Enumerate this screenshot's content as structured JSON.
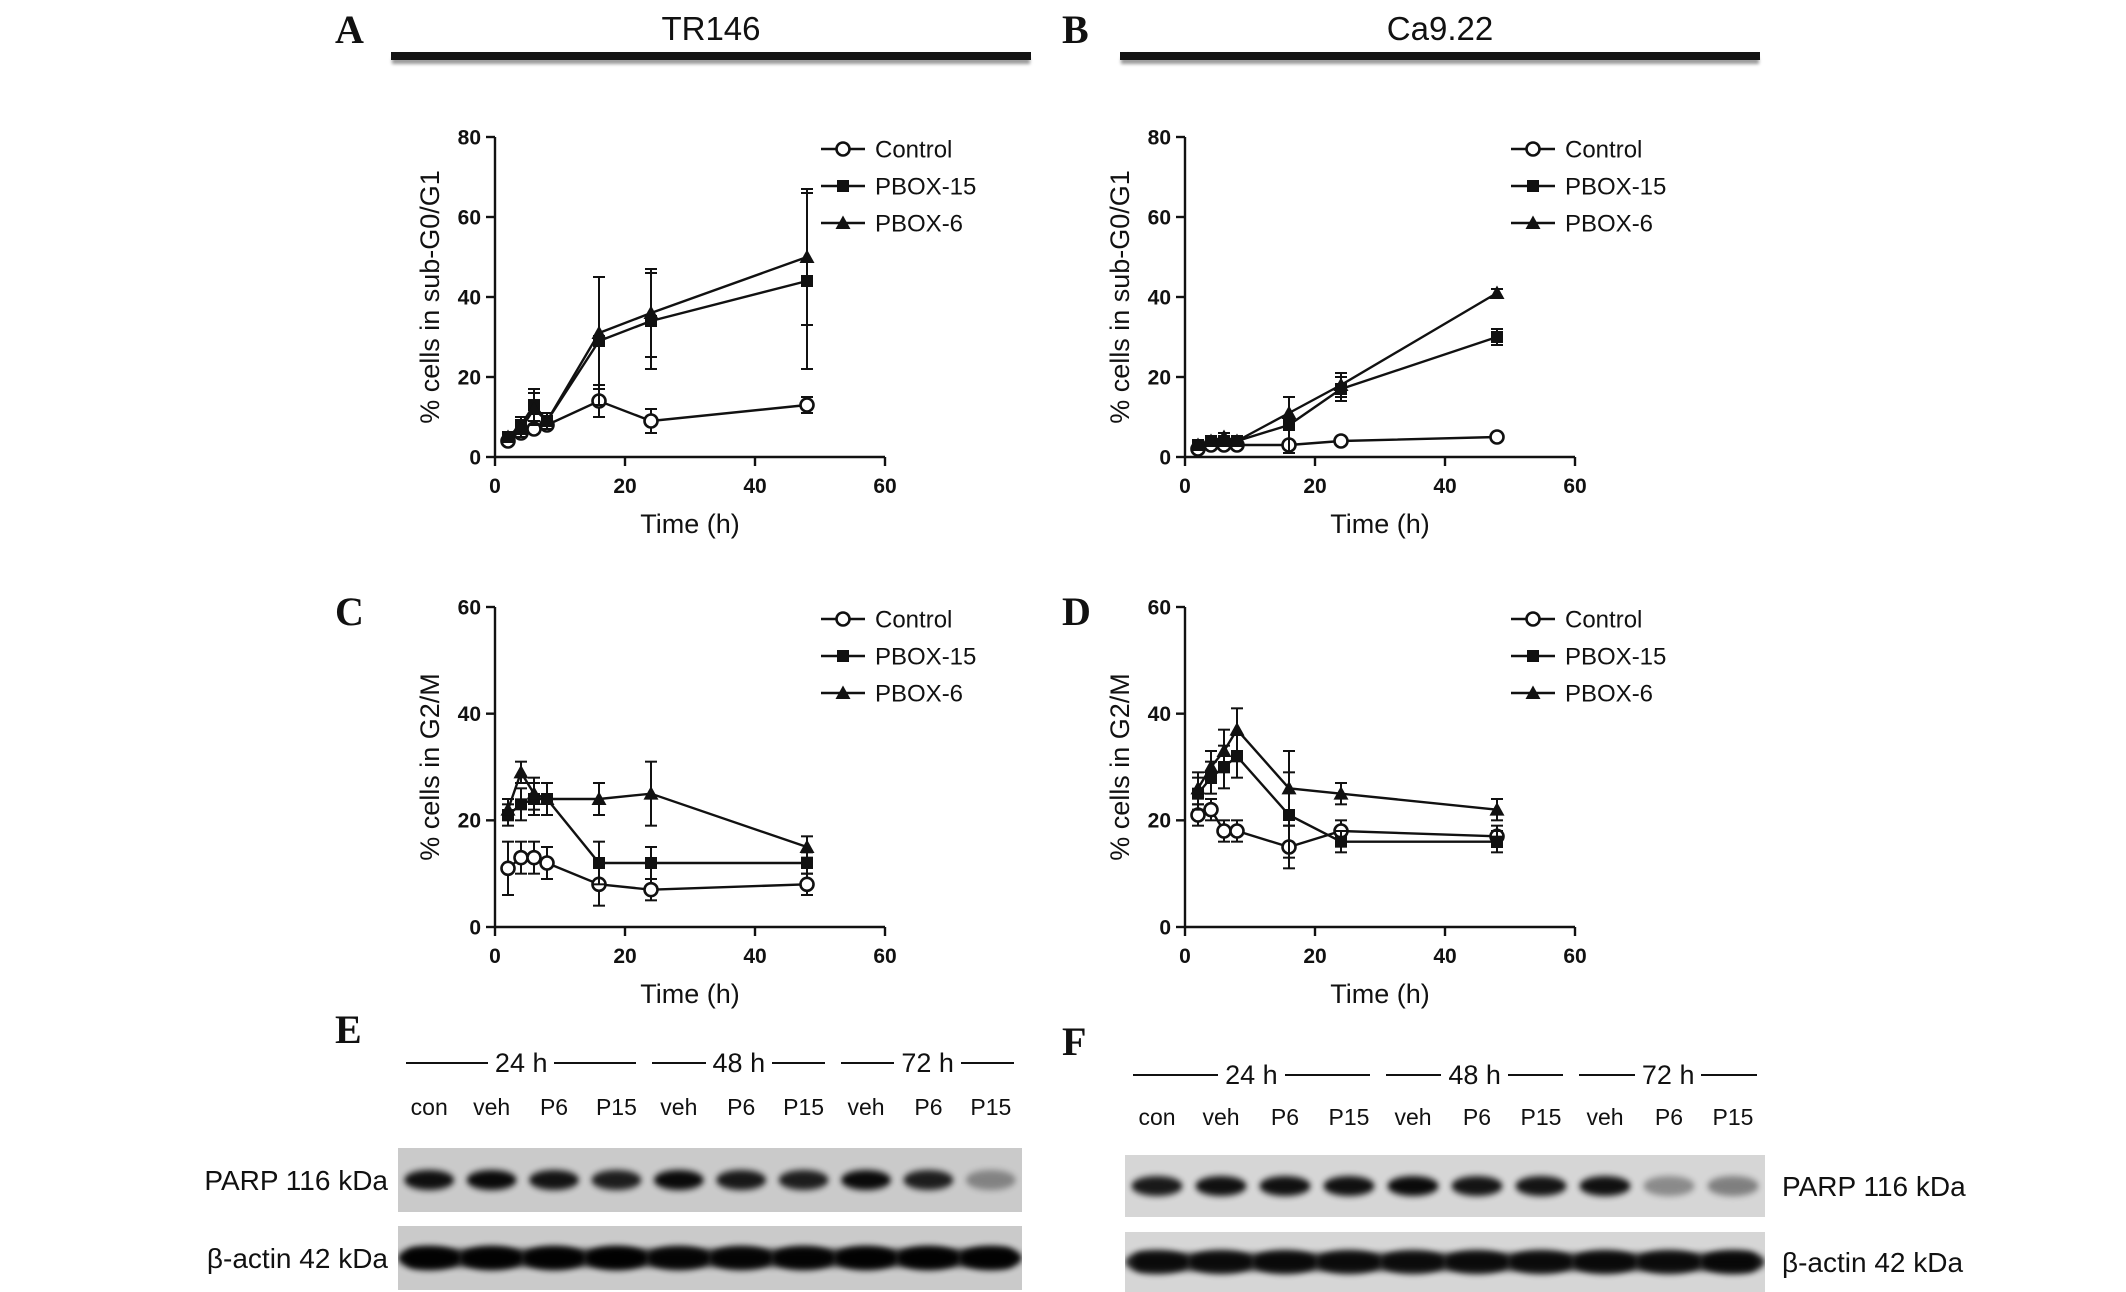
{
  "figure": {
    "columns": [
      {
        "title": "TR146"
      },
      {
        "title": "Ca9.22"
      }
    ]
  },
  "chart_data": [
    {
      "panel_label": "A",
      "cell_line": "TR146",
      "type": "line",
      "xlabel": "Time (h)",
      "ylabel": "% cells in sub-G0/G1",
      "xlim": [
        0,
        60
      ],
      "ylim": [
        0,
        80
      ],
      "xticks": [
        0,
        20,
        40,
        60
      ],
      "yticks": [
        0,
        20,
        40,
        60,
        80
      ],
      "x": [
        2,
        4,
        6,
        8,
        16,
        24,
        48
      ],
      "legend_position": "top-right",
      "grid": false,
      "series": [
        {
          "name": "Control",
          "marker": "open-circle",
          "values": [
            4,
            6,
            7,
            8,
            14,
            9,
            13
          ],
          "errors": [
            1,
            1,
            1,
            1,
            4,
            3,
            2
          ]
        },
        {
          "name": "PBOX-15",
          "marker": "filled-square",
          "values": [
            5,
            8,
            13,
            9,
            29,
            34,
            44
          ],
          "errors": [
            1,
            2,
            4,
            2,
            16,
            12,
            22
          ]
        },
        {
          "name": "PBOX-6",
          "marker": "filled-triangle",
          "values": [
            5,
            7,
            12,
            9,
            31,
            36,
            50
          ],
          "errors": [
            1,
            2,
            4,
            2,
            14,
            11,
            17
          ]
        }
      ]
    },
    {
      "panel_label": "B",
      "cell_line": "Ca9.22",
      "type": "line",
      "xlabel": "Time (h)",
      "ylabel": "% cells in sub-G0/G1",
      "xlim": [
        0,
        60
      ],
      "ylim": [
        0,
        80
      ],
      "xticks": [
        0,
        20,
        40,
        60
      ],
      "yticks": [
        0,
        20,
        40,
        60,
        80
      ],
      "x": [
        2,
        4,
        6,
        8,
        16,
        24,
        48
      ],
      "legend_position": "top-right",
      "grid": false,
      "series": [
        {
          "name": "Control",
          "marker": "open-circle",
          "values": [
            2,
            3,
            3,
            3,
            3,
            4,
            5
          ],
          "errors": [
            1,
            1,
            1,
            1,
            1,
            1,
            1
          ]
        },
        {
          "name": "PBOX-15",
          "marker": "filled-square",
          "values": [
            3,
            4,
            4,
            4,
            8,
            17,
            30
          ],
          "errors": [
            1,
            1,
            1,
            1,
            7,
            3,
            2
          ]
        },
        {
          "name": "PBOX-6",
          "marker": "filled-triangle",
          "values": [
            3,
            4,
            5,
            4,
            11,
            18,
            41
          ],
          "errors": [
            1,
            1,
            1,
            1,
            4,
            3,
            1
          ]
        }
      ]
    },
    {
      "panel_label": "C",
      "cell_line": "TR146",
      "type": "line",
      "xlabel": "Time (h)",
      "ylabel": "% cells in G2/M",
      "xlim": [
        0,
        60
      ],
      "ylim": [
        0,
        60
      ],
      "xticks": [
        0,
        20,
        40,
        60
      ],
      "yticks": [
        0,
        20,
        40,
        60
      ],
      "x": [
        2,
        4,
        6,
        8,
        16,
        24,
        48
      ],
      "legend_position": "top-right",
      "grid": false,
      "series": [
        {
          "name": "Control",
          "marker": "open-circle",
          "values": [
            11,
            13,
            13,
            12,
            8,
            7,
            8
          ],
          "errors": [
            5,
            3,
            3,
            3,
            4,
            2,
            2
          ]
        },
        {
          "name": "PBOX-15",
          "marker": "filled-square",
          "values": [
            21,
            23,
            24,
            24,
            12,
            12,
            12
          ],
          "errors": [
            2,
            3,
            3,
            3,
            4,
            3,
            2
          ]
        },
        {
          "name": "PBOX-6",
          "marker": "filled-triangle",
          "values": [
            22,
            29,
            25,
            24,
            24,
            25,
            15
          ],
          "errors": [
            2,
            2,
            3,
            3,
            3,
            6,
            2
          ]
        }
      ]
    },
    {
      "panel_label": "D",
      "cell_line": "Ca9.22",
      "type": "line",
      "xlabel": "Time (h)",
      "ylabel": "% cells in G2/M",
      "xlim": [
        0,
        60
      ],
      "ylim": [
        0,
        60
      ],
      "xticks": [
        0,
        20,
        40,
        60
      ],
      "yticks": [
        0,
        20,
        40,
        60
      ],
      "x": [
        2,
        4,
        6,
        8,
        16,
        24,
        48
      ],
      "legend_position": "top-right",
      "grid": false,
      "series": [
        {
          "name": "Control",
          "marker": "open-circle",
          "values": [
            21,
            22,
            18,
            18,
            15,
            18,
            17
          ],
          "errors": [
            2,
            2,
            2,
            2,
            4,
            2,
            2
          ]
        },
        {
          "name": "PBOX-15",
          "marker": "filled-square",
          "values": [
            25,
            28,
            30,
            32,
            21,
            16,
            16
          ],
          "errors": [
            3,
            3,
            4,
            4,
            8,
            2,
            2
          ]
        },
        {
          "name": "PBOX-6",
          "marker": "filled-triangle",
          "values": [
            26,
            30,
            33,
            37,
            26,
            25,
            22
          ],
          "errors": [
            3,
            3,
            4,
            4,
            7,
            2,
            2
          ]
        }
      ]
    }
  ],
  "blots": [
    {
      "panel_label": "E",
      "cell_line": "TR146",
      "time_groups": [
        {
          "label": "24 h",
          "lanes": 4
        },
        {
          "label": "48 h",
          "lanes": 3
        },
        {
          "label": "72 h",
          "lanes": 3
        }
      ],
      "lanes": [
        "con",
        "veh",
        "P6",
        "P15",
        "veh",
        "P6",
        "P15",
        "veh",
        "P6",
        "P15"
      ],
      "rows": [
        {
          "label": "PARP 116 kDa",
          "label_side": "left",
          "continuous": false,
          "bands": [
            0.92,
            0.95,
            0.9,
            0.85,
            0.95,
            0.88,
            0.85,
            0.95,
            0.85,
            0.35
          ]
        },
        {
          "label": "β-actin 42 kDa",
          "label_side": "left",
          "continuous": true,
          "bands": [
            0.95,
            0.95,
            0.95,
            0.97,
            0.9,
            0.9,
            0.92,
            0.95,
            0.95,
            0.95
          ]
        }
      ]
    },
    {
      "panel_label": "F",
      "cell_line": "Ca9.22",
      "time_groups": [
        {
          "label": "24 h",
          "lanes": 4
        },
        {
          "label": "48 h",
          "lanes": 3
        },
        {
          "label": "72 h",
          "lanes": 3
        }
      ],
      "lanes": [
        "con",
        "veh",
        "P6",
        "P15",
        "veh",
        "P6",
        "P15",
        "veh",
        "P6",
        "P15"
      ],
      "rows": [
        {
          "label": "PARP 116 kDa",
          "label_side": "right",
          "continuous": false,
          "bands": [
            0.88,
            0.92,
            0.92,
            0.92,
            0.95,
            0.9,
            0.9,
            0.92,
            0.35,
            0.4
          ]
        },
        {
          "label": "β-actin 42 kDa",
          "label_side": "right",
          "continuous": true,
          "bands": [
            0.8,
            0.8,
            0.82,
            0.8,
            0.78,
            0.8,
            0.8,
            0.82,
            0.8,
            0.85
          ]
        }
      ]
    }
  ]
}
